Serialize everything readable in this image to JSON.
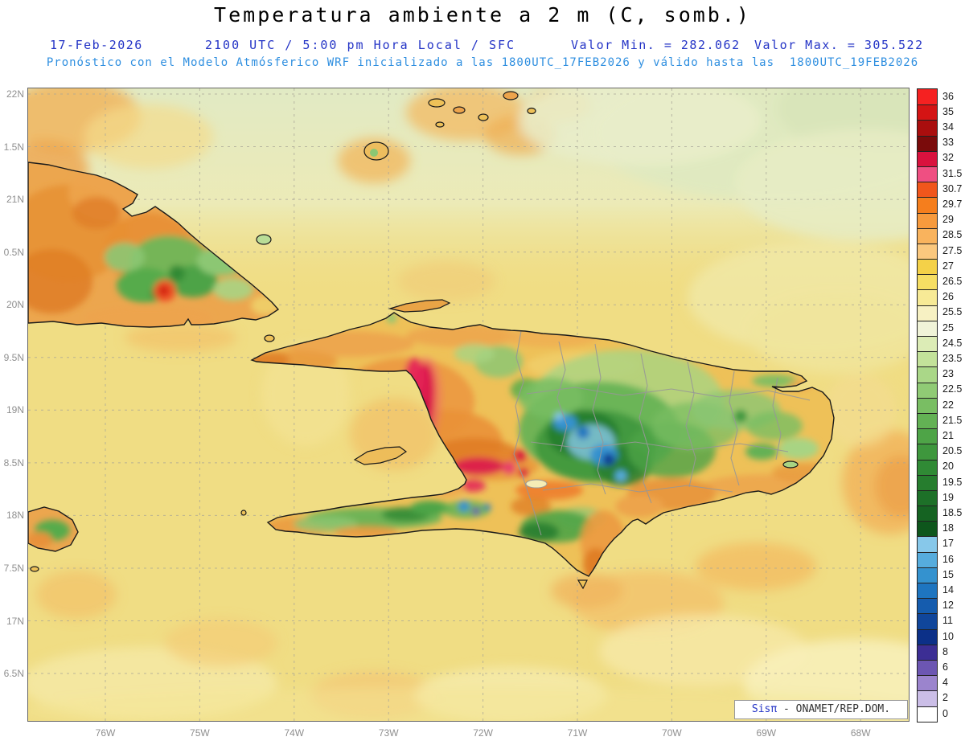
{
  "title": "Temperatura ambiente a 2 m (C, somb.)",
  "header": {
    "date": "17-Feb-2026",
    "time_info": "2100 UTC / 5:00 pm Hora Local / SFC",
    "min_value": "Valor Min. = 282.062",
    "max_value": "Valor Max. = 305.522",
    "forecast_info": "Pronóstico con el Modelo Atmósferico WRF inicializado a las 1800UTC_17FEB2026 y válido hasta las  1800UTC_19FEB2026"
  },
  "axes": {
    "lat_ticks": [
      "22N",
      "1.5N",
      "21N",
      "0.5N",
      "20N",
      "9.5N",
      "19N",
      "8.5N",
      "18N",
      "7.5N",
      "17N",
      "6.5N"
    ],
    "lon_ticks": [
      "76W",
      "75W",
      "74W",
      "73W",
      "72W",
      "71W",
      "70W",
      "69W",
      "68W"
    ]
  },
  "legend": {
    "units": "C",
    "values": [
      "36",
      "35",
      "34",
      "33",
      "32",
      "31.5",
      "30.7",
      "29.7",
      "29",
      "28.5",
      "27.5",
      "27",
      "26.5",
      "26",
      "25.5",
      "25",
      "24.5",
      "23.5",
      "23",
      "22.5",
      "22",
      "21.5",
      "21",
      "20.5",
      "20",
      "19.5",
      "19",
      "18.5",
      "18",
      "17",
      "16",
      "15",
      "14",
      "12",
      "11",
      "10",
      "8",
      "6",
      "4",
      "2",
      "0"
    ],
    "colors": [
      "#f52121",
      "#d41414",
      "#a90e0e",
      "#7a0b0b",
      "#d9123e",
      "#ef4f82",
      "#f1561c",
      "#f57e1d",
      "#f79a3d",
      "#f9b35d",
      "#fbc87e",
      "#f4d148",
      "#f6de63",
      "#f7ea96",
      "#f7f1c3",
      "#f0f3d8",
      "#dcecb6",
      "#c3e29a",
      "#aad788",
      "#90cb75",
      "#79be63",
      "#63b154",
      "#4ea447",
      "#3e973d",
      "#308a35",
      "#267d2e",
      "#1d7028",
      "#156322",
      "#0e561c",
      "#87c8ea",
      "#56acdd",
      "#3492cf",
      "#1e75c0",
      "#155cae",
      "#10469b",
      "#0c3088",
      "#3c2e94",
      "#6c56b2",
      "#9b84cd",
      "#cbbee7",
      "#ffffff"
    ]
  },
  "watermark": {
    "brand": "Sisπ",
    "text": " - ONAMET/REP.DOM."
  }
}
